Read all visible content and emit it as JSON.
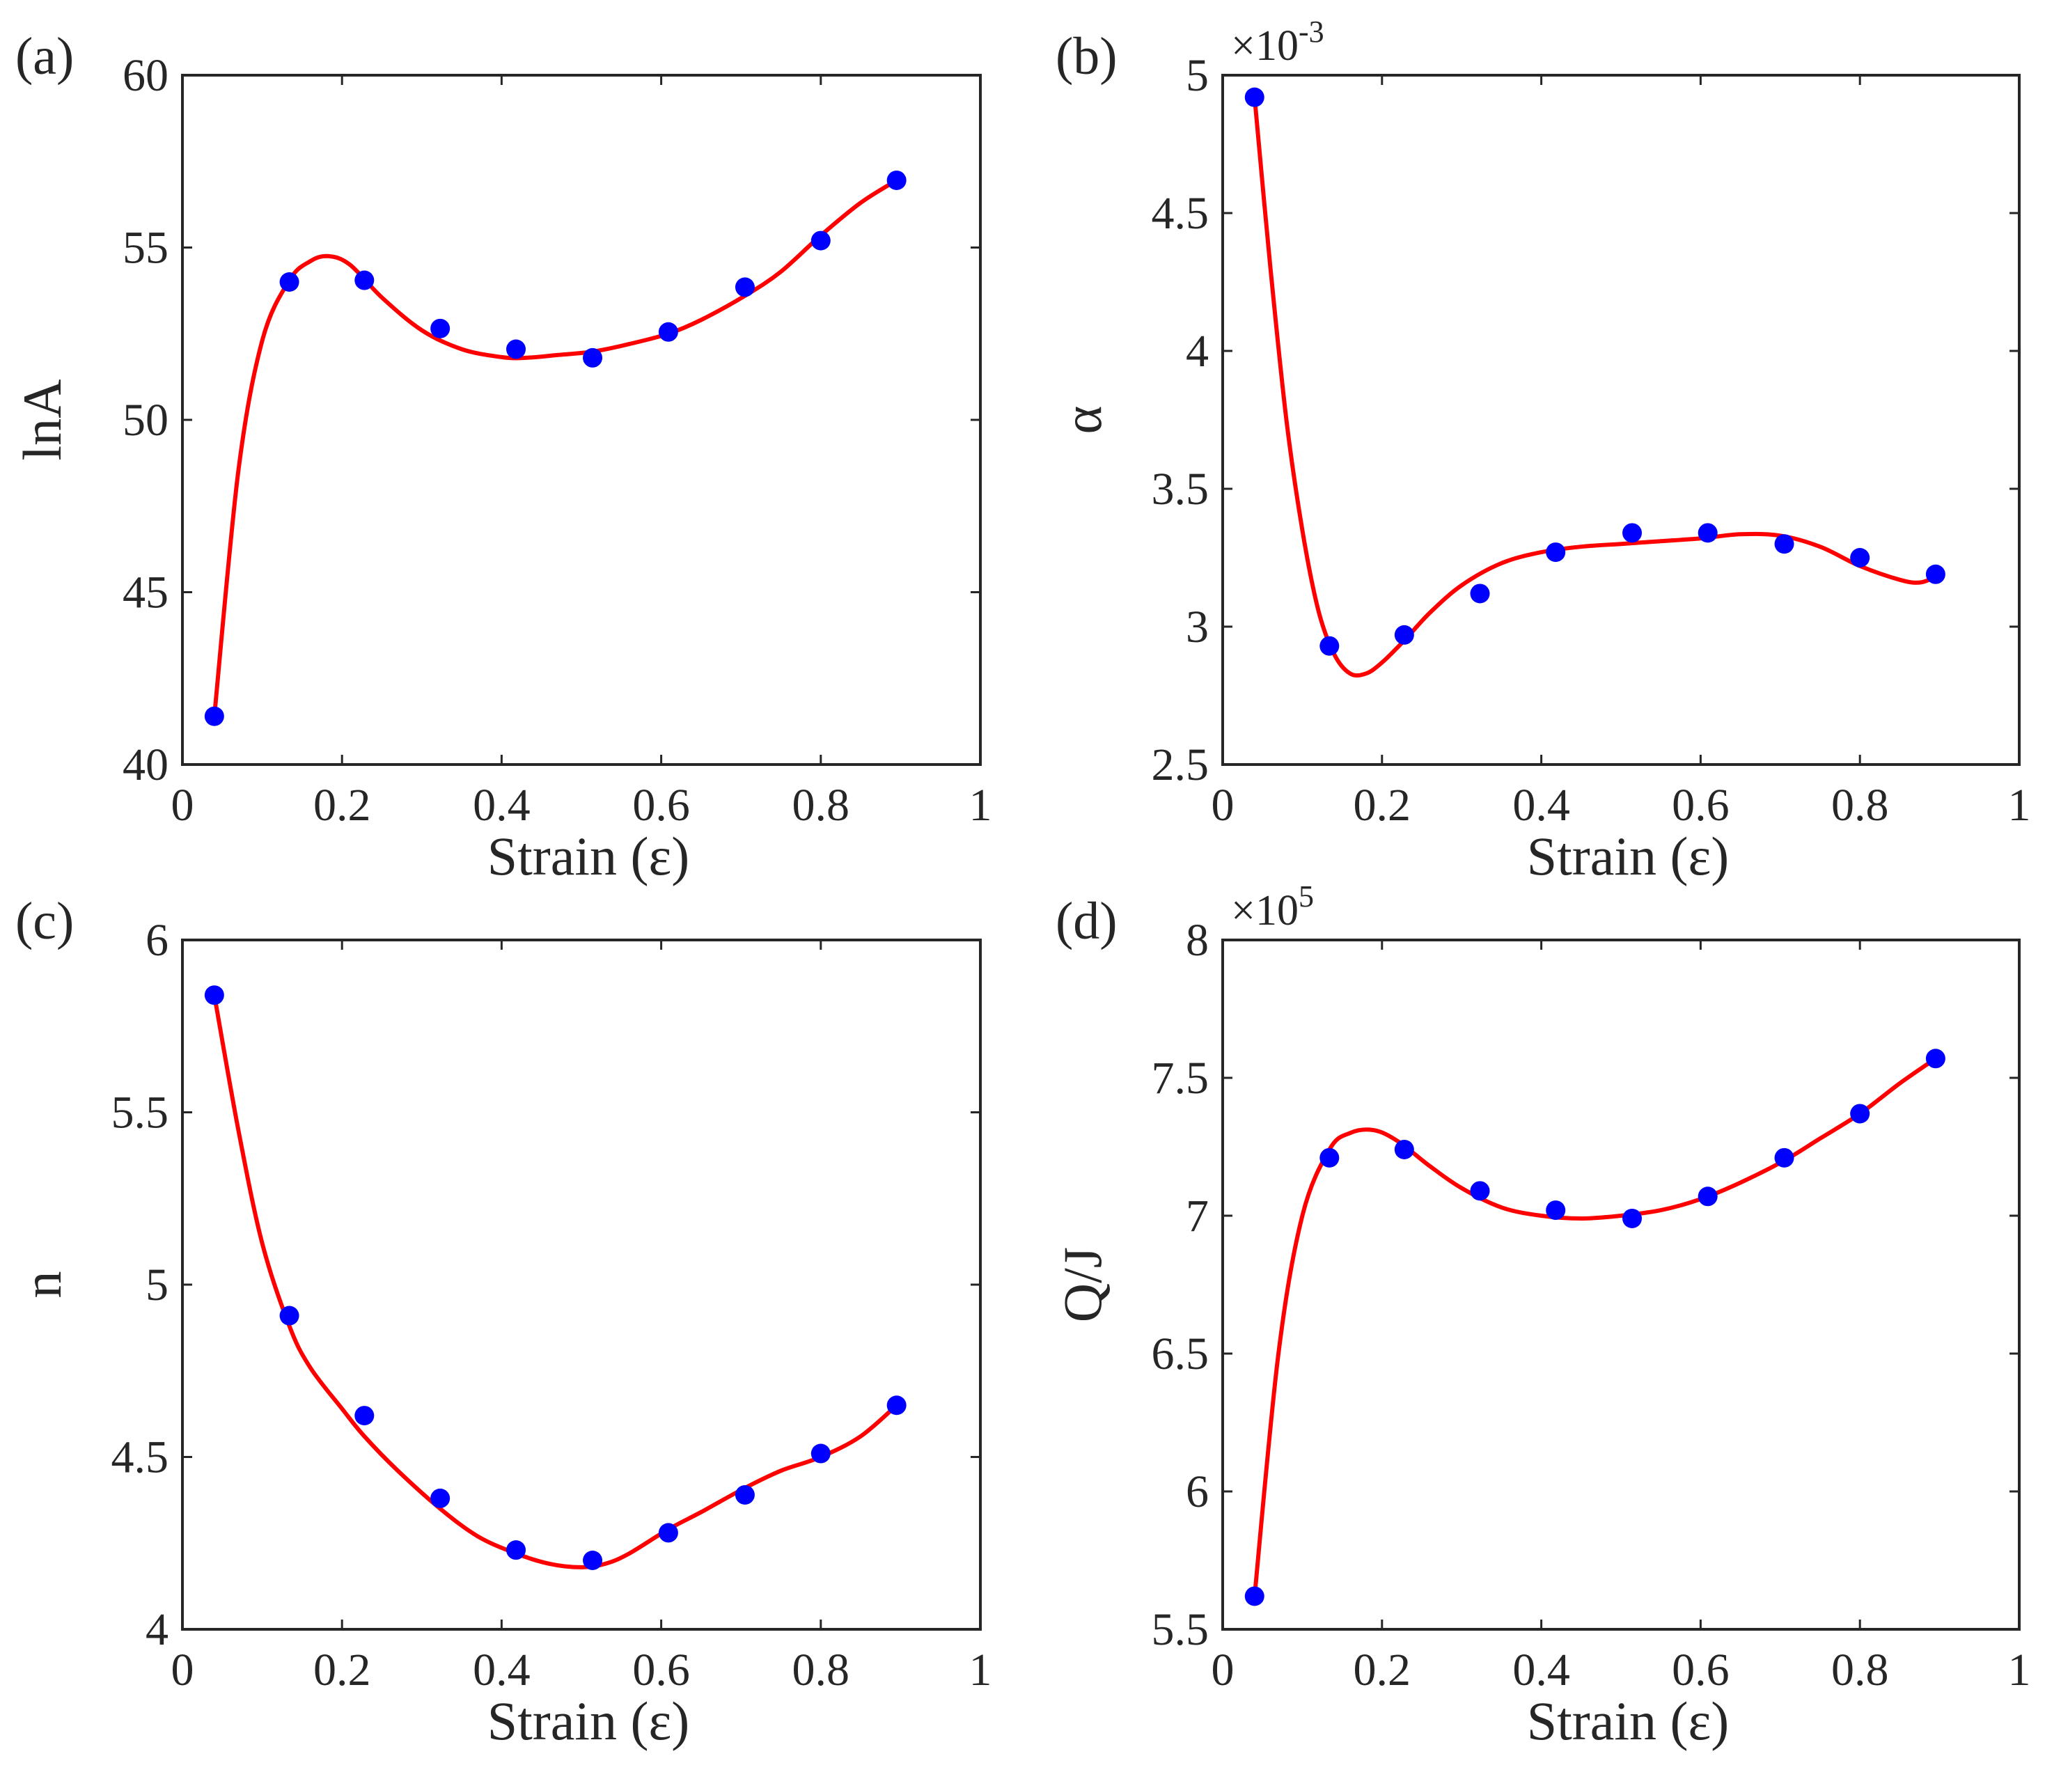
{
  "chart_data": [
    {
      "type": "scatter",
      "panel_label": "(a)",
      "title": "",
      "xlabel": "Strain (ε)",
      "ylabel": "lnA",
      "xlim": [
        0,
        1
      ],
      "ylim": [
        40,
        60
      ],
      "xticks": [
        0,
        0.2,
        0.4,
        0.6,
        0.8,
        1
      ],
      "xtick_labels": [
        "0",
        "0.2",
        "0.4",
        "0.6",
        "0.8",
        "1"
      ],
      "yticks": [
        40,
        45,
        50,
        55,
        60
      ],
      "ytick_labels": [
        "40",
        "45",
        "50",
        "55",
        "60"
      ],
      "multiplier": "",
      "marker_color": "#0000ff",
      "fit_color": "#ff0000",
      "series": [
        {
          "name": "data",
          "x": [
            0.04,
            0.134,
            0.228,
            0.323,
            0.418,
            0.514,
            0.609,
            0.705,
            0.8,
            0.895
          ],
          "y": [
            41.4,
            54.0,
            54.05,
            52.65,
            52.05,
            51.8,
            52.55,
            53.85,
            55.2,
            56.95
          ]
        },
        {
          "name": "polynomial fit",
          "x": [
            0.04,
            0.07,
            0.1,
            0.134,
            0.16,
            0.183,
            0.21,
            0.25,
            0.3,
            0.35,
            0.4,
            0.43,
            0.47,
            0.514,
            0.56,
            0.609,
            0.65,
            0.705,
            0.75,
            0.8,
            0.85,
            0.895
          ],
          "y": [
            41.4,
            48.5,
            52.3,
            54.05,
            54.6,
            54.75,
            54.5,
            53.55,
            52.6,
            52.05,
            51.82,
            51.8,
            51.88,
            51.98,
            52.2,
            52.5,
            52.9,
            53.6,
            54.3,
            55.35,
            56.3,
            56.95
          ]
        }
      ]
    },
    {
      "type": "scatter",
      "panel_label": "(b)",
      "title": "",
      "xlabel": "Strain (ε)",
      "ylabel": "α",
      "xlim": [
        0,
        1
      ],
      "ylim": [
        2.5,
        5
      ],
      "xticks": [
        0,
        0.2,
        0.4,
        0.6,
        0.8,
        1
      ],
      "xtick_labels": [
        "0",
        "0.2",
        "0.4",
        "0.6",
        "0.8",
        "1"
      ],
      "yticks": [
        2.5,
        3,
        3.5,
        4,
        4.5,
        5
      ],
      "ytick_labels": [
        "2.5",
        "3",
        "3.5",
        "4",
        "4.5",
        "5"
      ],
      "multiplier": "×10",
      "multiplier_exp": "-3",
      "marker_color": "#0000ff",
      "fit_color": "#ff0000",
      "series": [
        {
          "name": "data",
          "x": [
            0.04,
            0.134,
            0.228,
            0.323,
            0.418,
            0.514,
            0.609,
            0.705,
            0.8,
            0.895
          ],
          "y": [
            4.92,
            2.93,
            2.97,
            3.12,
            3.27,
            3.34,
            3.34,
            3.3,
            3.25,
            3.19
          ]
        },
        {
          "name": "polynomial fit",
          "x": [
            0.04,
            0.06,
            0.08,
            0.1,
            0.12,
            0.14,
            0.16,
            0.18,
            0.2,
            0.228,
            0.26,
            0.3,
            0.35,
            0.4,
            0.45,
            0.5,
            0.55,
            0.6,
            0.65,
            0.7,
            0.75,
            0.8,
            0.85,
            0.875,
            0.895
          ],
          "y": [
            4.92,
            4.3,
            3.75,
            3.35,
            3.06,
            2.9,
            2.83,
            2.83,
            2.87,
            2.95,
            3.05,
            3.15,
            3.23,
            3.27,
            3.29,
            3.3,
            3.31,
            3.32,
            3.335,
            3.33,
            3.29,
            3.22,
            3.17,
            3.16,
            3.18
          ]
        }
      ]
    },
    {
      "type": "scatter",
      "panel_label": "(c)",
      "title": "",
      "xlabel": "Strain (ε)",
      "ylabel": "n",
      "xlim": [
        0,
        1
      ],
      "ylim": [
        4,
        6
      ],
      "xticks": [
        0,
        0.2,
        0.4,
        0.6,
        0.8,
        1
      ],
      "xtick_labels": [
        "0",
        "0.2",
        "0.4",
        "0.6",
        "0.8",
        "1"
      ],
      "yticks": [
        4,
        4.5,
        5,
        5.5,
        6
      ],
      "ytick_labels": [
        "4",
        "4.5",
        "5",
        "5.5",
        "6"
      ],
      "multiplier": "",
      "marker_color": "#0000ff",
      "fit_color": "#ff0000",
      "series": [
        {
          "name": "data",
          "x": [
            0.04,
            0.134,
            0.228,
            0.323,
            0.418,
            0.514,
            0.609,
            0.705,
            0.8,
            0.895
          ],
          "y": [
            5.84,
            4.91,
            4.62,
            4.38,
            4.23,
            4.2,
            4.28,
            4.39,
            4.51,
            4.65
          ]
        },
        {
          "name": "polynomial fit",
          "x": [
            0.04,
            0.07,
            0.1,
            0.134,
            0.16,
            0.2,
            0.228,
            0.27,
            0.323,
            0.37,
            0.418,
            0.46,
            0.5,
            0.53,
            0.56,
            0.609,
            0.65,
            0.705,
            0.75,
            0.8,
            0.85,
            0.895
          ],
          "y": [
            5.84,
            5.45,
            5.12,
            4.88,
            4.76,
            4.64,
            4.56,
            4.46,
            4.35,
            4.27,
            4.22,
            4.19,
            4.18,
            4.19,
            4.22,
            4.29,
            4.34,
            4.41,
            4.46,
            4.5,
            4.56,
            4.65
          ]
        }
      ]
    },
    {
      "type": "scatter",
      "panel_label": "(d)",
      "title": "",
      "xlabel": "Strain (ε)",
      "ylabel": "Q/J",
      "xlim": [
        0,
        1
      ],
      "ylim": [
        5.5,
        8
      ],
      "xticks": [
        0,
        0.2,
        0.4,
        0.6,
        0.8,
        1
      ],
      "xtick_labels": [
        "0",
        "0.2",
        "0.4",
        "0.6",
        "0.8",
        "1"
      ],
      "yticks": [
        5.5,
        6,
        6.5,
        7,
        7.5,
        8
      ],
      "ytick_labels": [
        "5.5",
        "6",
        "6.5",
        "7",
        "7.5",
        "8"
      ],
      "multiplier": "×10",
      "multiplier_exp": "5",
      "marker_color": "#0000ff",
      "fit_color": "#ff0000",
      "series": [
        {
          "name": "data",
          "x": [
            0.04,
            0.134,
            0.228,
            0.323,
            0.418,
            0.514,
            0.609,
            0.705,
            0.8,
            0.895
          ],
          "y": [
            5.62,
            7.21,
            7.24,
            7.09,
            7.02,
            6.99,
            7.07,
            7.21,
            7.37,
            7.57
          ]
        },
        {
          "name": "polynomial fit",
          "x": [
            0.04,
            0.07,
            0.1,
            0.134,
            0.16,
            0.19,
            0.22,
            0.26,
            0.3,
            0.35,
            0.4,
            0.45,
            0.5,
            0.55,
            0.6,
            0.65,
            0.705,
            0.75,
            0.8,
            0.85,
            0.895
          ],
          "y": [
            5.62,
            6.5,
            7.0,
            7.24,
            7.3,
            7.31,
            7.27,
            7.18,
            7.1,
            7.03,
            7.0,
            6.99,
            7.0,
            7.02,
            7.06,
            7.12,
            7.2,
            7.28,
            7.37,
            7.48,
            7.57
          ]
        }
      ]
    }
  ]
}
